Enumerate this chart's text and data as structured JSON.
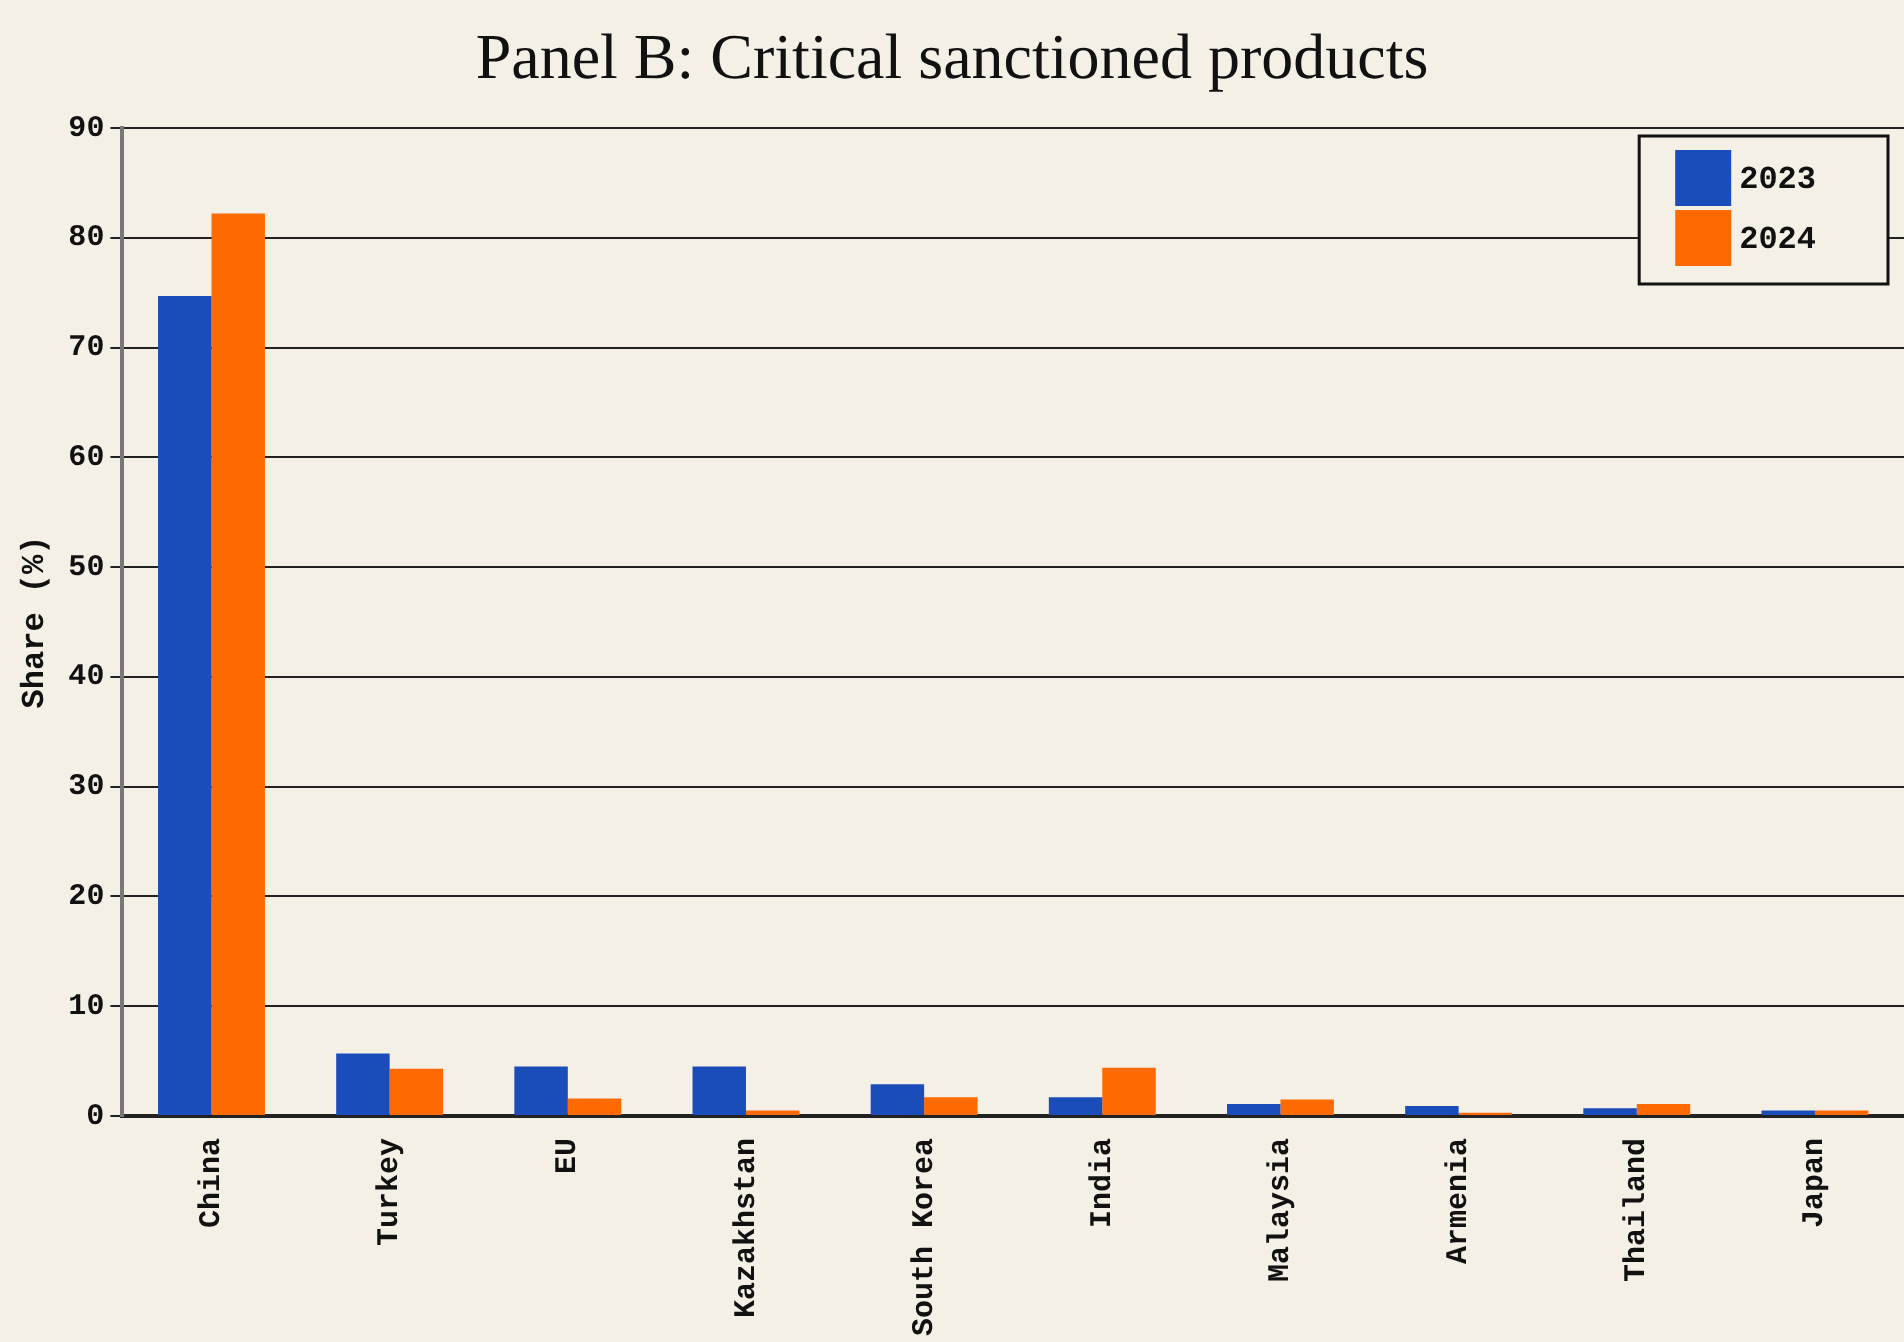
{
  "chart_data": {
    "type": "bar",
    "title": "Panel B: Critical sanctioned products",
    "ylabel": "Share (%)",
    "categories": [
      "China",
      "Turkey",
      "EU",
      "Kazakhstan",
      "South Korea",
      "India",
      "Malaysia",
      "Armenia",
      "Thailand",
      "Japan"
    ],
    "series": [
      {
        "name": "2023",
        "color": "#1a4cba",
        "values": [
          74.7,
          5.7,
          4.5,
          4.5,
          2.9,
          1.7,
          1.1,
          0.9,
          0.7,
          0.5
        ]
      },
      {
        "name": "2024",
        "color": "#ff6a00",
        "values": [
          82.2,
          4.3,
          1.6,
          0.5,
          1.7,
          4.4,
          1.5,
          0.3,
          1.1,
          0.5
        ]
      }
    ],
    "ylim": [
      0,
      90
    ],
    "yticks": [
      0,
      10,
      20,
      30,
      40,
      50,
      60,
      70,
      80,
      90
    ],
    "grid": "y",
    "legend": "top right"
  }
}
